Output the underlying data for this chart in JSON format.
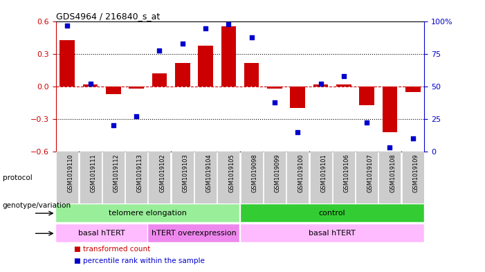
{
  "title": "GDS4964 / 216840_s_at",
  "samples": [
    "GSM1019110",
    "GSM1019111",
    "GSM1019112",
    "GSM1019113",
    "GSM1019102",
    "GSM1019103",
    "GSM1019104",
    "GSM1019105",
    "GSM1019098",
    "GSM1019099",
    "GSM1019100",
    "GSM1019101",
    "GSM1019106",
    "GSM1019107",
    "GSM1019108",
    "GSM1019109"
  ],
  "bar_values": [
    0.43,
    0.02,
    -0.07,
    -0.02,
    0.12,
    0.22,
    0.38,
    0.56,
    0.22,
    -0.02,
    -0.2,
    0.02,
    0.02,
    -0.17,
    -0.42,
    -0.05
  ],
  "dot_values": [
    97,
    52,
    20,
    27,
    78,
    83,
    95,
    98,
    88,
    38,
    15,
    52,
    58,
    22,
    3,
    10
  ],
  "ylim": [
    -0.6,
    0.6
  ],
  "yticks": [
    -0.6,
    -0.3,
    0.0,
    0.3,
    0.6
  ],
  "y2ticks": [
    0,
    25,
    50,
    75,
    100
  ],
  "y2ticklabels": [
    "0",
    "25",
    "50",
    "75",
    "100%"
  ],
  "bar_color": "#cc0000",
  "dot_color": "#0000cc",
  "zero_line_color": "#cc0000",
  "grid_color": "#000000",
  "bg_color": "#ffffff",
  "xtick_bg_color": "#cccccc",
  "protocol_labels": [
    {
      "text": "telomere elongation",
      "start": 0,
      "end": 7,
      "color": "#99ee99"
    },
    {
      "text": "control",
      "start": 8,
      "end": 15,
      "color": "#33cc33"
    }
  ],
  "genotype_labels": [
    {
      "text": "basal hTERT",
      "start": 0,
      "end": 3,
      "color": "#ffbbff"
    },
    {
      "text": "hTERT overexpression",
      "start": 4,
      "end": 7,
      "color": "#ee88ee"
    },
    {
      "text": "basal hTERT",
      "start": 8,
      "end": 15,
      "color": "#ffbbff"
    }
  ],
  "legend_items": [
    {
      "label": "transformed count",
      "color": "#cc0000"
    },
    {
      "label": "percentile rank within the sample",
      "color": "#0000cc"
    }
  ],
  "protocol_row_label": "protocol",
  "genotype_row_label": "genotype/variation"
}
